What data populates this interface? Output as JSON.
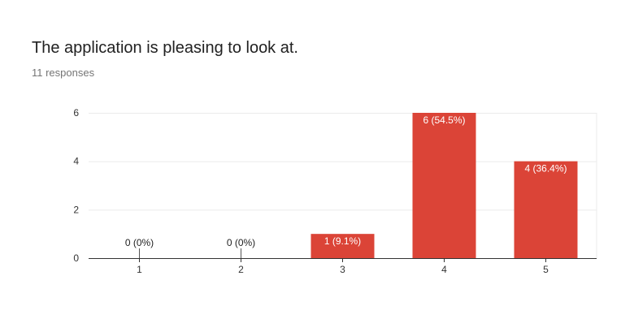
{
  "question": {
    "title": "The application is pleasing to look at.",
    "responses": "11 responses"
  },
  "colors": {
    "bar": "#db4437",
    "grid": "#ebebeb",
    "axis": "#333333",
    "label_dark": "#222222",
    "label_light": "#ffffff"
  },
  "chart_data": {
    "type": "bar",
    "categories": [
      "1",
      "2",
      "3",
      "4",
      "5"
    ],
    "values": [
      0,
      0,
      1,
      6,
      4
    ],
    "data_labels": [
      "0 (0%)",
      "0 (0%)",
      "1 (9.1%)",
      "6 (54.5%)",
      "4 (36.4%)"
    ],
    "yticks": [
      0,
      2,
      4,
      6
    ],
    "ylim": [
      0,
      6
    ],
    "grid": true,
    "legend": "none"
  }
}
